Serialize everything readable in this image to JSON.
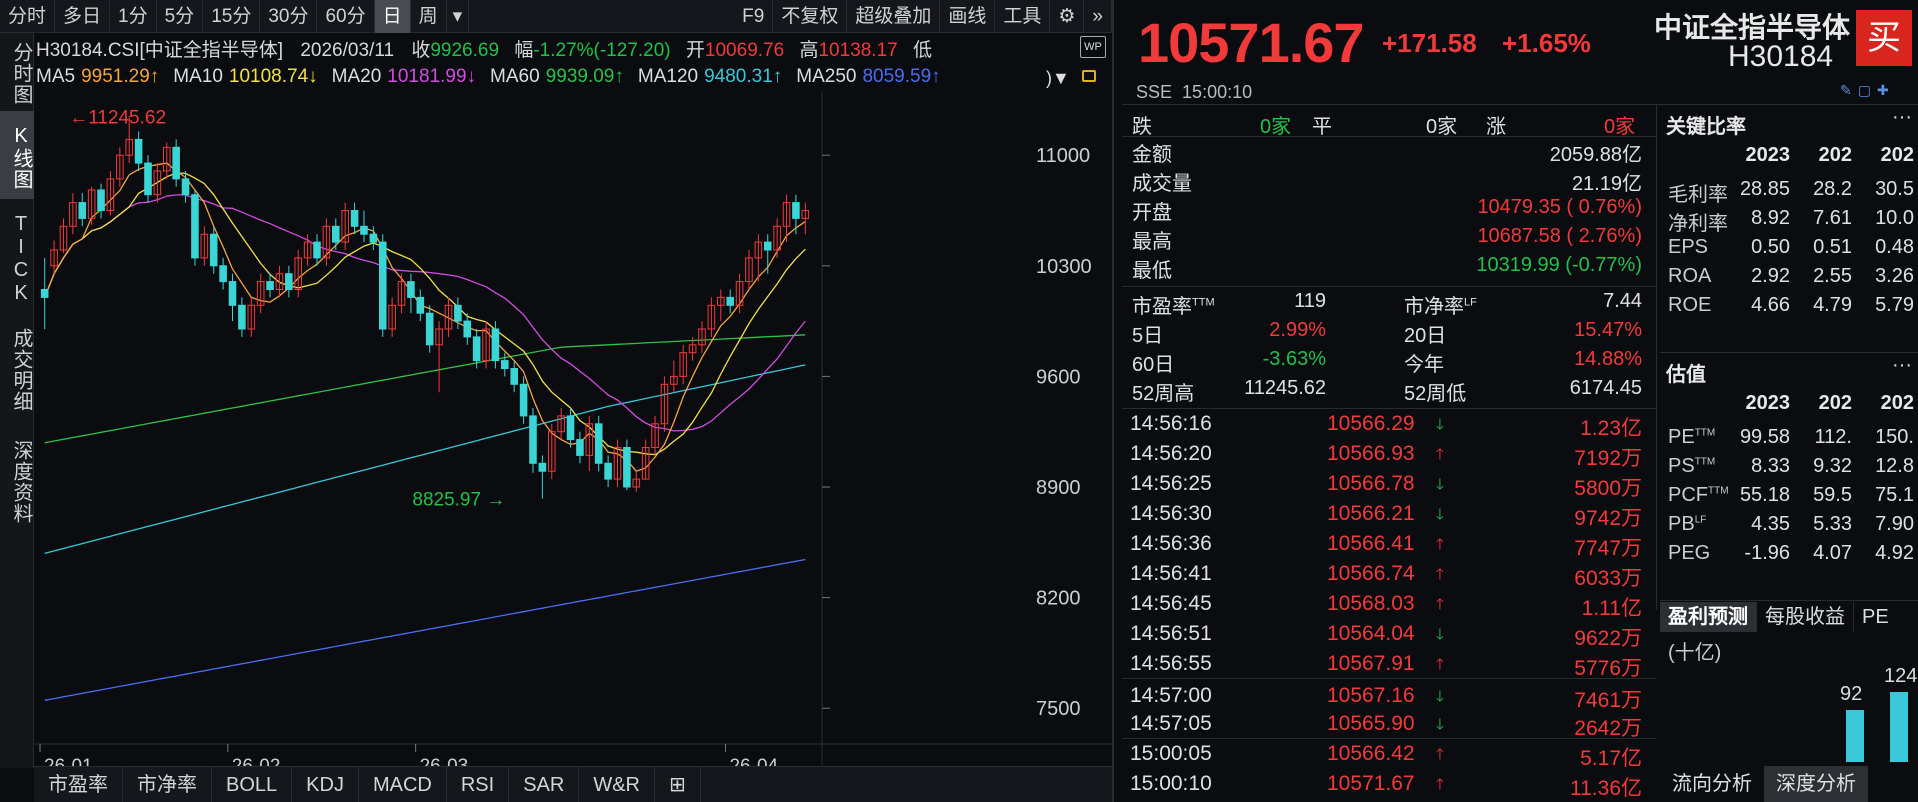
{
  "toolbar": {
    "periods": [
      "分时",
      "多日",
      "1分",
      "5分",
      "15分",
      "30分",
      "60分",
      "日",
      "周"
    ],
    "active": "日",
    "tools": [
      "F9",
      "不复权",
      "超级叠加",
      "画线",
      "工具"
    ]
  },
  "side_tabs": [
    "分时图",
    "K线图",
    "TICK",
    "成交明细",
    "深度资料"
  ],
  "side_active": "K线图",
  "info": {
    "code": "H30184.CSI[中证全指半导体]",
    "date": "2026/03/11",
    "close_label": "收",
    "close": "9926.69",
    "range_label": "幅",
    "range": "-1.27%(-127.20)",
    "open_label": "开",
    "open": "10069.76",
    "high_label": "高",
    "high": "10138.17",
    "low_label": "低"
  },
  "ma": [
    {
      "label": "MA5",
      "value": "9951.29↑",
      "color": "#f2a541"
    },
    {
      "label": "MA10",
      "value": "10108.74↓",
      "color": "#f0e04a"
    },
    {
      "label": "MA20",
      "value": "10181.99↓",
      "color": "#d04de0"
    },
    {
      "label": "MA60",
      "value": "9939.09↑",
      "color": "#2fc04a"
    },
    {
      "label": "MA120",
      "value": "9480.31↑",
      "color": "#38c8d8"
    },
    {
      "label": "MA250",
      "value": "8059.59↑",
      "color": "#4a6cf0"
    }
  ],
  "chart_data": {
    "type": "candlestick",
    "y_ticks": [
      11000,
      10300,
      9600,
      8900,
      8200,
      7500
    ],
    "ylim": [
      7400,
      11400
    ],
    "x_ticks": [
      "26-01",
      "26-02",
      "26-03",
      "26-04"
    ],
    "high_marker": "11245.62",
    "low_marker": "8825.97",
    "candles": [
      [
        10150,
        10100,
        10350,
        9900
      ],
      [
        10300,
        10400,
        10460,
        10250
      ],
      [
        10400,
        10550,
        10600,
        10380
      ],
      [
        10550,
        10700,
        10760,
        10500
      ],
      [
        10700,
        10600,
        10760,
        10550
      ],
      [
        10600,
        10780,
        10800,
        10560
      ],
      [
        10780,
        10650,
        10820,
        10600
      ],
      [
        10650,
        10850,
        10900,
        10620
      ],
      [
        10850,
        11000,
        11050,
        10800
      ],
      [
        11000,
        11100,
        11245,
        10950
      ],
      [
        11100,
        10950,
        11150,
        10900
      ],
      [
        10950,
        10750,
        11000,
        10700
      ],
      [
        10750,
        10900,
        10950,
        10700
      ],
      [
        10900,
        11050,
        11080,
        10850
      ],
      [
        11050,
        10850,
        11100,
        10800
      ],
      [
        10850,
        10750,
        10900,
        10700
      ],
      [
        10750,
        10350,
        10780,
        10300
      ],
      [
        10350,
        10500,
        10550,
        10300
      ],
      [
        10500,
        10300,
        10550,
        10250
      ],
      [
        10300,
        10200,
        10350,
        10150
      ],
      [
        10200,
        10050,
        10250,
        9950
      ],
      [
        10050,
        9900,
        10100,
        9850
      ],
      [
        9900,
        10050,
        10100,
        9850
      ],
      [
        10050,
        10200,
        10250,
        10000
      ],
      [
        10200,
        10150,
        10250,
        10100
      ],
      [
        10150,
        10250,
        10300,
        10100
      ],
      [
        10250,
        10150,
        10300,
        10100
      ],
      [
        10150,
        10350,
        10400,
        10100
      ],
      [
        10350,
        10450,
        10500,
        10300
      ],
      [
        10450,
        10350,
        10500,
        10300
      ],
      [
        10350,
        10550,
        10600,
        10300
      ],
      [
        10550,
        10450,
        10600,
        10400
      ],
      [
        10450,
        10650,
        10700,
        10400
      ],
      [
        10650,
        10550,
        10700,
        10500
      ],
      [
        10550,
        10500,
        10650,
        10450
      ],
      [
        10500,
        10450,
        10550,
        10400
      ],
      [
        10450,
        9900,
        10500,
        9850
      ],
      [
        9900,
        10050,
        10100,
        9850
      ],
      [
        10050,
        10200,
        10250,
        10000
      ],
      [
        10200,
        10100,
        10250,
        10000
      ],
      [
        10100,
        10000,
        10150,
        9950
      ],
      [
        10000,
        9800,
        10050,
        9750
      ],
      [
        9800,
        9900,
        9950,
        9500
      ],
      [
        9900,
        10050,
        10100,
        9850
      ],
      [
        10050,
        9950,
        10100,
        9900
      ],
      [
        9950,
        9850,
        10000,
        9800
      ],
      [
        9850,
        9700,
        9900,
        9650
      ],
      [
        9700,
        9900,
        9950,
        9650
      ],
      [
        9900,
        9700,
        9950,
        9650
      ],
      [
        9700,
        9650,
        9750,
        9600
      ],
      [
        9650,
        9550,
        9700,
        9500
      ],
      [
        9550,
        9350,
        9600,
        9300
      ],
      [
        9350,
        9050,
        9400,
        8990
      ],
      [
        9050,
        9000,
        9100,
        8826
      ],
      [
        9000,
        9250,
        9300,
        8950
      ],
      [
        9250,
        9350,
        9400,
        9200
      ],
      [
        9350,
        9200,
        9400,
        9150
      ],
      [
        9200,
        9100,
        9250,
        9050
      ],
      [
        9100,
        9300,
        9350,
        9000
      ],
      [
        9300,
        9050,
        9350,
        9000
      ],
      [
        9050,
        8950,
        9100,
        8900
      ],
      [
        8950,
        9150,
        9200,
        8900
      ],
      [
        9150,
        8900,
        9200,
        8880
      ],
      [
        8900,
        8950,
        9000,
        8870
      ],
      [
        8950,
        9150,
        9200,
        8950
      ],
      [
        9150,
        9300,
        9350,
        9100
      ],
      [
        9300,
        9550,
        9600,
        9250
      ],
      [
        9550,
        9600,
        9700,
        9500
      ],
      [
        9600,
        9750,
        9800,
        9550
      ],
      [
        9750,
        9800,
        9850,
        9700
      ],
      [
        9800,
        9900,
        9950,
        9750
      ],
      [
        9900,
        10050,
        10100,
        9850
      ],
      [
        10050,
        10100,
        10150,
        9950
      ],
      [
        10100,
        10050,
        10150,
        10000
      ],
      [
        10050,
        10200,
        10250,
        10000
      ],
      [
        10200,
        10350,
        10400,
        10150
      ],
      [
        10350,
        10450,
        10500,
        10200
      ],
      [
        10450,
        10400,
        10500,
        10250
      ],
      [
        10400,
        10550,
        10600,
        10350
      ],
      [
        10550,
        10700,
        10750,
        10450
      ],
      [
        10700,
        10600,
        10750,
        10500
      ],
      [
        10600,
        10650,
        10700,
        10500
      ]
    ]
  },
  "header": {
    "price": "10571.67",
    "change": "+171.58",
    "change_pct": "+1.65%",
    "name": "中证全指半导体",
    "code": "H30184",
    "buy": "买",
    "exchange": "SSE",
    "time": "15:00:10"
  },
  "stats": {
    "down_label": "跌",
    "down": "0家",
    "flat_label": "平",
    "flat": "0家",
    "up_label": "涨",
    "up": "0家",
    "rows": [
      {
        "label": "金额",
        "value": "2059.88亿",
        "color": "white"
      },
      {
        "label": "成交量",
        "value": "21.19亿",
        "color": "white"
      },
      {
        "label": "开盘",
        "value": "10479.35 ( 0.76%)",
        "color": "red"
      },
      {
        "label": "最高",
        "value": "10687.58 ( 2.76%)",
        "color": "red"
      },
      {
        "label": "最低",
        "value": "10319.99 (-0.77%)",
        "color": "green"
      }
    ],
    "pairs": [
      {
        "l1": "市盈率",
        "s1": "TTM",
        "v1": "119",
        "c1": "white",
        "l2": "市净率",
        "s2": "LF",
        "v2": "7.44",
        "c2": "white"
      },
      {
        "l1": "5日",
        "s1": "",
        "v1": "2.99%",
        "c1": "red",
        "l2": "20日",
        "s2": "",
        "v2": "15.47%",
        "c2": "red"
      },
      {
        "l1": "60日",
        "s1": "",
        "v1": "-3.63%",
        "c1": "green",
        "l2": "今年",
        "s2": "",
        "v2": "14.88%",
        "c2": "red"
      },
      {
        "l1": "52周高",
        "s1": "",
        "v1": "11245.62",
        "c1": "white",
        "l2": "52周低",
        "s2": "",
        "v2": "6174.45",
        "c2": "white"
      }
    ]
  },
  "ticks": [
    {
      "t": "14:56:16",
      "p": "10566.29",
      "d": "down",
      "v": "1.23亿"
    },
    {
      "t": "14:56:20",
      "p": "10566.93",
      "d": "up",
      "v": "7192万"
    },
    {
      "t": "14:56:25",
      "p": "10566.78",
      "d": "down",
      "v": "5800万"
    },
    {
      "t": "14:56:30",
      "p": "10566.21",
      "d": "down",
      "v": "9742万"
    },
    {
      "t": "14:56:36",
      "p": "10566.41",
      "d": "up",
      "v": "7747万"
    },
    {
      "t": "14:56:41",
      "p": "10566.74",
      "d": "up",
      "v": "6033万"
    },
    {
      "t": "14:56:45",
      "p": "10568.03",
      "d": "up",
      "v": "1.11亿"
    },
    {
      "t": "14:56:51",
      "p": "10564.04",
      "d": "down",
      "v": "9622万"
    },
    {
      "t": "14:56:55",
      "p": "10567.91",
      "d": "up",
      "v": "5776万"
    },
    {
      "t": "14:57:00",
      "p": "10567.16",
      "d": "down",
      "v": "7461万"
    },
    {
      "t": "14:57:05",
      "p": "10565.90",
      "d": "down",
      "v": "2642万"
    },
    {
      "t": "15:00:05",
      "p": "10566.42",
      "d": "up",
      "v": "5.17亿"
    },
    {
      "t": "15:00:10",
      "p": "10571.67",
      "d": "up",
      "v": "11.36亿"
    }
  ],
  "key_ratios": {
    "title": "关键比率",
    "years": [
      "2023",
      "202",
      "202"
    ],
    "rows": [
      {
        "label": "毛利率",
        "sup": "",
        "v": [
          "28.85",
          "28.2",
          "30.5"
        ]
      },
      {
        "label": "净利率",
        "sup": "",
        "v": [
          "8.92",
          "7.61",
          "10.0"
        ]
      },
      {
        "label": "EPS",
        "sup": "",
        "v": [
          "0.50",
          "0.51",
          "0.48"
        ]
      },
      {
        "label": "ROA",
        "sup": "",
        "v": [
          "2.92",
          "2.55",
          "3.26"
        ]
      },
      {
        "label": "ROE",
        "sup": "",
        "v": [
          "4.66",
          "4.79",
          "5.79"
        ]
      }
    ]
  },
  "valuation": {
    "title": "估值",
    "years": [
      "2023",
      "202",
      "202"
    ],
    "rows": [
      {
        "label": "PE",
        "sup": "TTM",
        "v": [
          "99.58",
          "112.",
          "150."
        ]
      },
      {
        "label": "PS",
        "sup": "TTM",
        "v": [
          "8.33",
          "9.32",
          "12.8"
        ]
      },
      {
        "label": "PCF",
        "sup": "TTM",
        "v": [
          "55.18",
          "59.5",
          "75.1"
        ]
      },
      {
        "label": "PB",
        "sup": "LF",
        "v": [
          "4.35",
          "5.33",
          "7.90"
        ]
      },
      {
        "label": "PEG",
        "sup": "",
        "v": [
          "-1.96",
          "4.07",
          "4.92"
        ]
      }
    ]
  },
  "forecast": {
    "tabs": [
      "盈利预测",
      "每股收益",
      "PE"
    ],
    "unit": "(十亿)",
    "bars": [
      {
        "label": "92",
        "value": 92
      },
      {
        "label": "124",
        "value": 124
      }
    ]
  },
  "bottom_tabs": [
    "市盈率",
    "市净率",
    "BOLL",
    "KDJ",
    "MACD",
    "RSI",
    "SAR",
    "W&R"
  ],
  "right_bottom_tabs": [
    "流向分析",
    "深度分析"
  ]
}
